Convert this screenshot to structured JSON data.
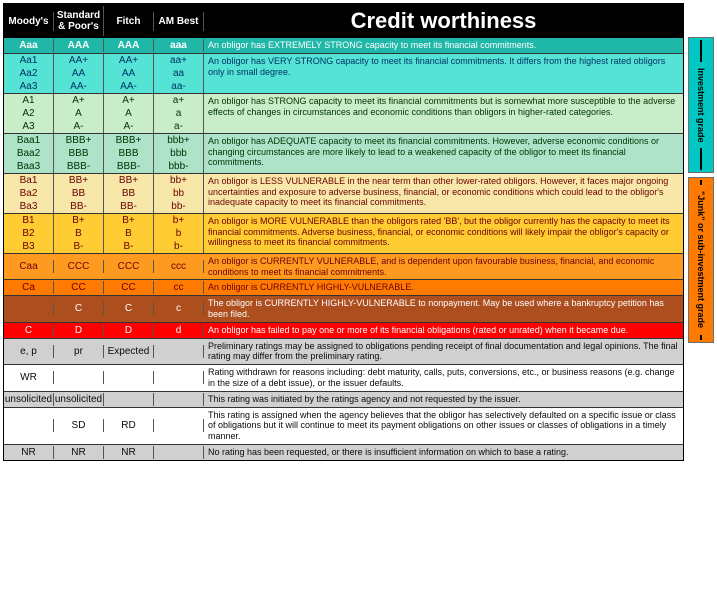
{
  "header": {
    "agencies": [
      "Moody's",
      "Standard & Poor's",
      "Fitch",
      "AM Best"
    ],
    "title": "Credit worthiness"
  },
  "side": {
    "investment": {
      "label": "Investment grade",
      "bg": "#00c7c1",
      "border": "#6e6e6e"
    },
    "junk": {
      "label": "\"Junk\" or sub-investment grade",
      "bg": "#ff7a00",
      "border": "#6e6e6e"
    }
  },
  "colors": {
    "teal_h": "#1fb8a8",
    "teal_l": "#54e3d4",
    "green_l": "#c8edc8",
    "green_m": "#aee2c9",
    "cream": "#f7e8a9",
    "yellow": "#ffcc33",
    "orange_l": "#ff9a21",
    "orange_m": "#ff7a00",
    "brown": "#ad4e1e",
    "red": "#ff0000",
    "grey": "#d0d0d0",
    "white": "#ffffff",
    "txt_white": "#ffffff",
    "txt_dk": "#0a0a0a",
    "txt_blue": "#003366",
    "txt_dkred": "#6b0000",
    "txt_green": "#003300"
  },
  "groups": [
    {
      "bg": "teal_h",
      "txt_bg": "teal_h",
      "txt": "txt_white",
      "hdr_txt": "txt_white",
      "bold": true,
      "side": "investment",
      "rows": [
        [
          "Aaa",
          "AAA",
          "AAA",
          "aaa"
        ]
      ],
      "desc": "An obligor has EXTREMELY STRONG capacity to meet its financial commitments."
    },
    {
      "bg": "teal_l",
      "txt_bg": "teal_l",
      "txt": "txt_blue",
      "side": "investment",
      "rows": [
        [
          "Aa1",
          "AA+",
          "AA+",
          "aa+"
        ],
        [
          "Aa2",
          "AA",
          "AA",
          "aa"
        ],
        [
          "Aa3",
          "AA-",
          "AA-",
          "aa-"
        ]
      ],
      "desc": "An obligor has VERY STRONG capacity to meet its financial commitments. It differs from the highest rated obligors only in small degree."
    },
    {
      "bg": "green_l",
      "txt_bg": "green_l",
      "txt": "txt_green",
      "side": "investment",
      "rows": [
        [
          "A1",
          "A+",
          "A+",
          "a+"
        ],
        [
          "A2",
          "A",
          "A",
          "a"
        ],
        [
          "A3",
          "A-",
          "A-",
          "a-"
        ]
      ],
      "desc": "An obligor has STRONG capacity to meet its financial commitments but is somewhat more susceptible to the adverse effects of changes in circumstances and economic conditions than obligors in higher-rated categories."
    },
    {
      "bg": "green_m",
      "txt_bg": "green_m",
      "txt": "txt_green",
      "side": "investment",
      "rows": [
        [
          "Baa1",
          "BBB+",
          "BBB+",
          "bbb+"
        ],
        [
          "Baa2",
          "BBB",
          "BBB",
          "bbb"
        ],
        [
          "Baa3",
          "BBB-",
          "BBB-",
          "bbb-"
        ]
      ],
      "desc": "An obligor has ADEQUATE capacity to meet its financial commitments. However, adverse economic conditions or changing circumstances are more likely to lead to a weakened capacity of the obligor to meet its financial commitments."
    },
    {
      "bg": "cream",
      "txt_bg": "cream",
      "txt": "txt_dkred",
      "side": "junk",
      "rows": [
        [
          "Ba1",
          "BB+",
          "BB+",
          "bb+"
        ],
        [
          "Ba2",
          "BB",
          "BB",
          "bb"
        ],
        [
          "Ba3",
          "BB-",
          "BB-",
          "bb-"
        ]
      ],
      "desc": "An obligor is LESS VULNERABLE in the near term than other lower-rated obligors. However, it faces major ongoing uncertainties and exposure to adverse business, financial, or economic conditions which could lead to the obligor's inadequate capacity to meet its financial commitments."
    },
    {
      "bg": "yellow",
      "txt_bg": "yellow",
      "txt": "txt_dkred",
      "side": "junk",
      "rows": [
        [
          "B1",
          "B+",
          "B+",
          "b+"
        ],
        [
          "B2",
          "B",
          "B",
          "b"
        ],
        [
          "B3",
          "B-",
          "B-",
          "b-"
        ]
      ],
      "desc": "An obligor is MORE VULNERABLE than the obligors rated 'BB', but the obligor currently has the capacity to meet its financial commitments. Adverse business, financial, or economic conditions will likely impair the obligor's capacity or willingness to meet its financial commitments."
    },
    {
      "bg": "orange_l",
      "txt_bg": "orange_l",
      "txt": "txt_dkred",
      "side": "junk",
      "rows": [
        [
          "Caa",
          "CCC",
          "CCC",
          "ccc"
        ]
      ],
      "desc": "An obligor is CURRENTLY VULNERABLE, and is dependent upon favourable business, financial, and economic conditions to meet its financial commitments."
    },
    {
      "bg": "orange_m",
      "txt_bg": "orange_m",
      "txt": "txt_dkred",
      "side": "junk",
      "rows": [
        [
          "Ca",
          "CC",
          "CC",
          "cc"
        ]
      ],
      "desc": "An obligor is CURRENTLY HIGHLY-VULNERABLE."
    },
    {
      "bg": "brown",
      "txt_bg": "brown",
      "txt": "txt_white",
      "side": "junk",
      "rows": [
        [
          "",
          "C",
          "C",
          "c"
        ]
      ],
      "desc": "The obligor is CURRENTLY HIGHLY-VULNERABLE to nonpayment. May be used where a bankruptcy petition has been filed."
    },
    {
      "bg": "red",
      "txt_bg": "red",
      "txt": "txt_white",
      "side": "junk",
      "rows": [
        [
          "C",
          "D",
          "D",
          "d"
        ]
      ],
      "desc": "An obligor has failed to pay one or more of its financial obligations (rated or unrated) when it became due."
    },
    {
      "bg": "grey",
      "txt_bg": "grey",
      "txt": "txt_dk",
      "rows": [
        [
          "e, p",
          "pr",
          "Expected",
          ""
        ]
      ],
      "desc": "Preliminary ratings may be assigned to obligations pending receipt of final documentation and legal opinions. The final rating may differ from the preliminary rating."
    },
    {
      "bg": "white",
      "txt_bg": "white",
      "txt": "txt_dk",
      "rows": [
        [
          "WR",
          "",
          "",
          ""
        ]
      ],
      "desc": "Rating withdrawn for reasons including: debt maturity, calls, puts, conversions, etc., or business reasons (e.g. change in the size of a debt issue), or the issuer defaults."
    },
    {
      "bg": "grey",
      "txt_bg": "grey",
      "txt": "txt_dk",
      "rows": [
        [
          "unsolicited",
          "unsolicited",
          "",
          ""
        ]
      ],
      "desc": "This rating was initiated by the ratings agency and not requested by the issuer."
    },
    {
      "bg": "white",
      "txt_bg": "white",
      "txt": "txt_dk",
      "rows": [
        [
          "",
          "SD",
          "RD",
          ""
        ]
      ],
      "desc": "This rating is assigned when the agency believes that the obligor has selectively defaulted on a specific issue or class of obligations but it will continue to meet its payment obligations on other issues or classes of obligations in a timely manner."
    },
    {
      "bg": "grey",
      "txt_bg": "grey",
      "txt": "txt_dk",
      "rows": [
        [
          "NR",
          "NR",
          "NR",
          ""
        ]
      ],
      "desc": "No rating has been requested, or there is insufficient information on which to base a rating."
    }
  ]
}
